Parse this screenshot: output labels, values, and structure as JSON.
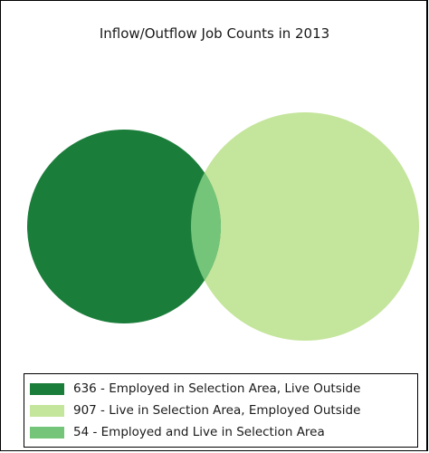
{
  "title": "Inflow/Outflow Job Counts in 2013",
  "legend": {
    "items": [
      {
        "label": "636 - Employed in Selection Area, Live Outside",
        "color": "#1b7d3a"
      },
      {
        "label": "907 - Live in Selection Area, Employed Outside",
        "color": "#c4e59c"
      },
      {
        "label": "54 - Employed and Live in Selection Area",
        "color": "#74c57a"
      }
    ]
  },
  "venn": {
    "employed_outside_live_inside": 907,
    "employed_inside_live_outside": 636,
    "employed_and_live_inside": 54
  }
}
